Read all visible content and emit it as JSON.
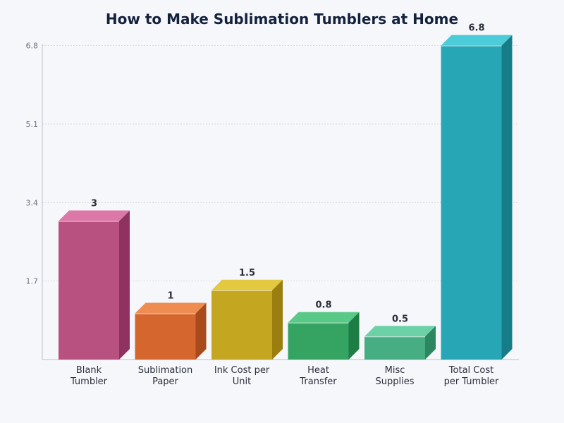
{
  "chart_data": {
    "type": "bar",
    "title": "How to Make Sublimation Tumblers at Home",
    "xlabel": "",
    "ylabel": "",
    "categories": [
      [
        "Blank",
        "Tumbler"
      ],
      [
        "Sublimation",
        "Paper"
      ],
      [
        "Ink Cost per",
        "Unit"
      ],
      [
        "Heat",
        "Transfer"
      ],
      [
        "Misc",
        "Supplies"
      ],
      [
        "Total Cost",
        "per Tumbler"
      ]
    ],
    "values": [
      3,
      1,
      1.5,
      0.8,
      0.5,
      6.8
    ],
    "value_labels": [
      "3",
      "1",
      "1.5",
      "0.8",
      "0.5",
      "6.8"
    ],
    "yticks": [
      1.7,
      3.4,
      5.1,
      6.8
    ],
    "ytick_labels": [
      "1.7",
      "3.4",
      "5.1",
      "6.8"
    ],
    "ylim": [
      0,
      6.8
    ],
    "grid": true,
    "legend": "none",
    "colors": [
      {
        "front": "#b85180",
        "top": "#dc78a8",
        "side": "#8e3260"
      },
      {
        "front": "#d5672e",
        "top": "#ee8c52",
        "side": "#a84a1c"
      },
      {
        "front": "#c4a620",
        "top": "#e2c93f",
        "side": "#9a7f10"
      },
      {
        "front": "#35a463",
        "top": "#58c986",
        "side": "#1e7d45"
      },
      {
        "front": "#47ae84",
        "top": "#6dd1a7",
        "side": "#2b875f"
      },
      {
        "front": "#27a6b5",
        "top": "#4ccbd8",
        "side": "#167d88"
      }
    ]
  }
}
